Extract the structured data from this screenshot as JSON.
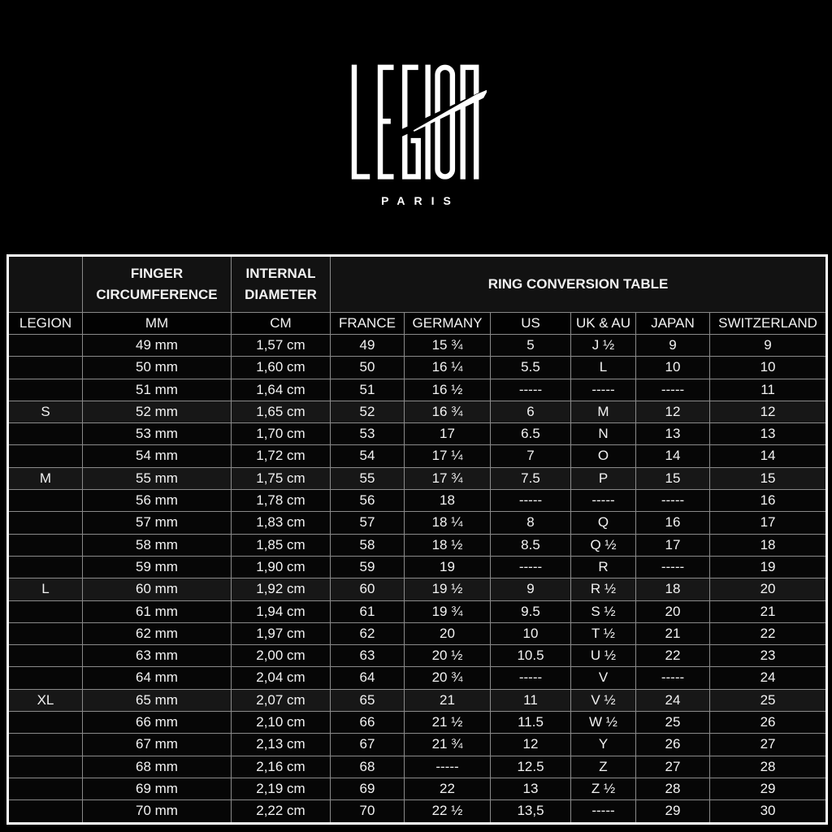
{
  "brand": {
    "name": "LEGION",
    "city": "PARIS"
  },
  "colors": {
    "background": "#000000",
    "text": "#f2f2f2",
    "outer_border": "#ffffff",
    "grid_border": "#8a8a8a",
    "row_highlight": "#171717"
  },
  "table": {
    "title": "RING CONVERSION TABLE",
    "finger_circumference_label": "FINGER CIRCUMFERENCE",
    "internal_diameter_label": "INTERNAL DIAMETER",
    "columns": [
      "LEGION",
      "MM",
      "CM",
      "FRANCE",
      "GERMANY",
      "US",
      "UK & AU",
      "JAPAN",
      "SWITZERLAND"
    ]
  },
  "chart_data": {
    "type": "table",
    "title": "RING CONVERSION TABLE",
    "columns": [
      "LEGION",
      "MM",
      "CM",
      "FRANCE",
      "GERMANY",
      "US",
      "UK & AU",
      "JAPAN",
      "SWITZERLAND"
    ],
    "rows": [
      [
        "",
        "49 mm",
        "1,57 cm",
        "49",
        "15 ¾",
        "5",
        "J ½",
        "9",
        "9"
      ],
      [
        "",
        "50 mm",
        "1,60 cm",
        "50",
        "16 ¼",
        "5.5",
        "L",
        "10",
        "10"
      ],
      [
        "",
        "51 mm",
        "1,64 cm",
        "51",
        "16 ½",
        "-----",
        "-----",
        "-----",
        "11"
      ],
      [
        "S",
        "52 mm",
        "1,65 cm",
        "52",
        "16 ¾",
        "6",
        "M",
        "12",
        "12"
      ],
      [
        "",
        "53 mm",
        "1,70 cm",
        "53",
        "17",
        "6.5",
        "N",
        "13",
        "13"
      ],
      [
        "",
        "54 mm",
        "1,72 cm",
        "54",
        "17 ¼",
        "7",
        "O",
        "14",
        "14"
      ],
      [
        "M",
        "55 mm",
        "1,75 cm",
        "55",
        "17 ¾",
        "7.5",
        "P",
        "15",
        "15"
      ],
      [
        "",
        "56 mm",
        "1,78 cm",
        "56",
        "18",
        "-----",
        "-----",
        "-----",
        "16"
      ],
      [
        "",
        "57 mm",
        "1,83 cm",
        "57",
        "18 ¼",
        "8",
        "Q",
        "16",
        "17"
      ],
      [
        "",
        "58 mm",
        "1,85 cm",
        "58",
        "18 ½",
        "8.5",
        "Q ½",
        "17",
        "18"
      ],
      [
        "",
        "59 mm",
        "1,90 cm",
        "59",
        "19",
        "-----",
        "R",
        "-----",
        "19"
      ],
      [
        "L",
        "60 mm",
        "1,92 cm",
        "60",
        "19 ½",
        "9",
        "R ½",
        "18",
        "20"
      ],
      [
        "",
        "61 mm",
        "1,94 cm",
        "61",
        "19 ¾",
        "9.5",
        "S ½",
        "20",
        "21"
      ],
      [
        "",
        "62 mm",
        "1,97 cm",
        "62",
        "20",
        "10",
        "T ½",
        "21",
        "22"
      ],
      [
        "",
        "63 mm",
        "2,00 cm",
        "63",
        "20 ½",
        "10.5",
        "U ½",
        "22",
        "23"
      ],
      [
        "",
        "64 mm",
        "2,04 cm",
        "64",
        "20 ¾",
        "-----",
        "V",
        "-----",
        "24"
      ],
      [
        "XL",
        "65 mm",
        "2,07 cm",
        "65",
        "21",
        "11",
        "V ½",
        "24",
        "25"
      ],
      [
        "",
        "66 mm",
        "2,10 cm",
        "66",
        "21 ½",
        "11.5",
        "W ½",
        "25",
        "26"
      ],
      [
        "",
        "67 mm",
        "2,13 cm",
        "67",
        "21 ¾",
        "12",
        "Y",
        "26",
        "27"
      ],
      [
        "",
        "68 mm",
        "2,16 cm",
        "68",
        "-----",
        "12.5",
        "Z",
        "27",
        "28"
      ],
      [
        "",
        "69 mm",
        "2,19 cm",
        "69",
        "22",
        "13",
        "Z ½",
        "28",
        "29"
      ],
      [
        "",
        "70 mm",
        "2,22 cm",
        "70",
        "22 ½",
        "13,5",
        "-----",
        "29",
        "30"
      ]
    ]
  }
}
